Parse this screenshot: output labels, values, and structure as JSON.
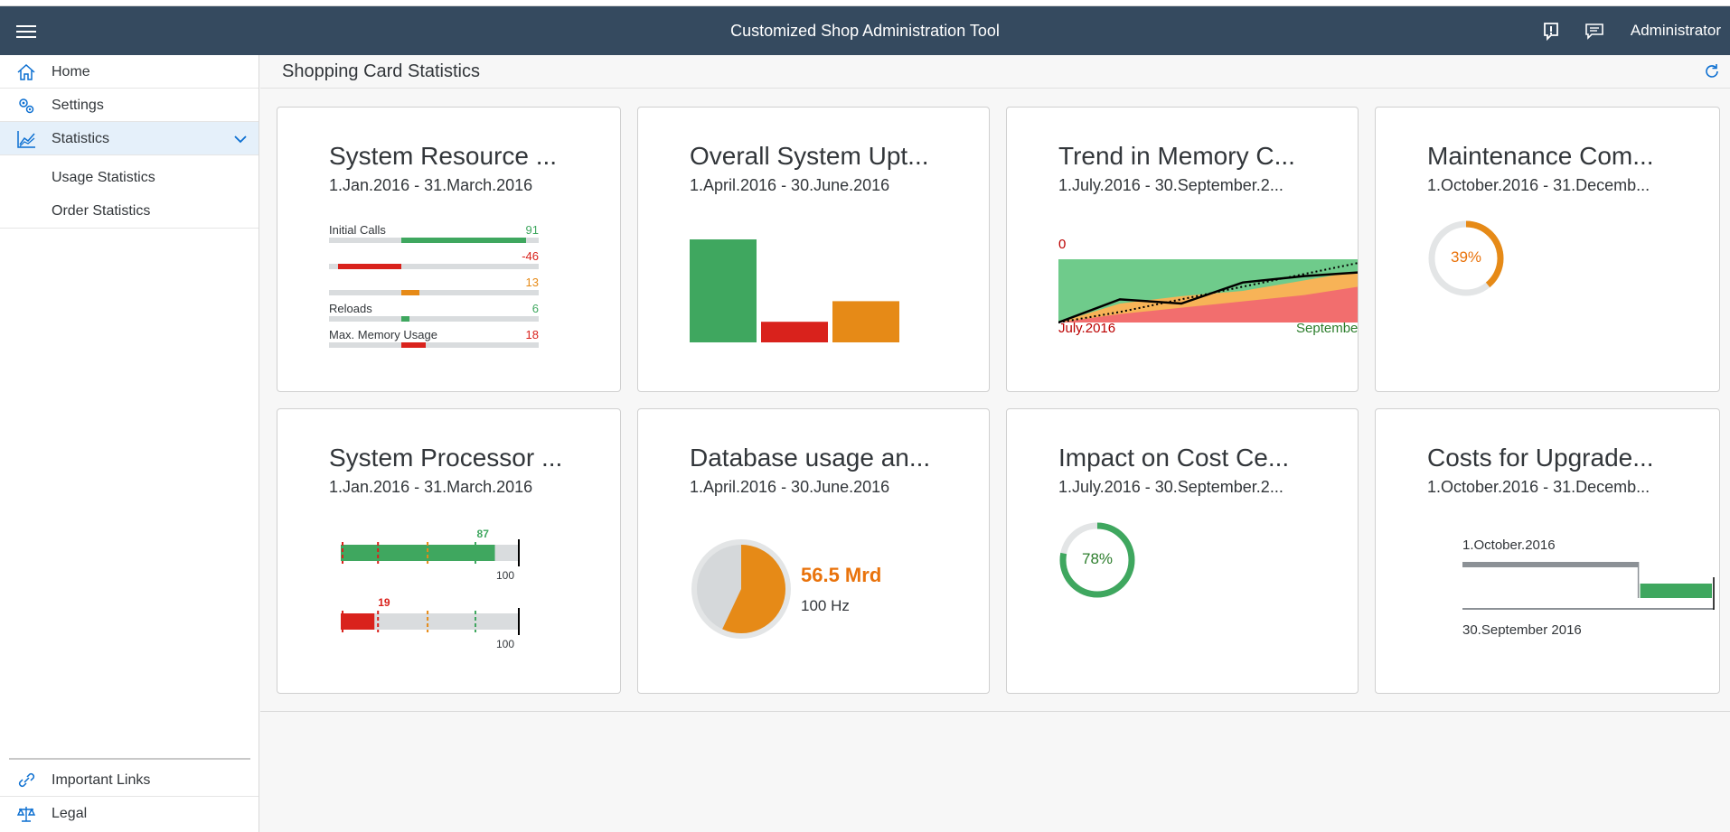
{
  "shell": {
    "title": "Customized Shop Administration Tool",
    "user": "Administrator",
    "icons": [
      "menu-icon",
      "feedback-icon",
      "notifications-icon"
    ]
  },
  "sidebar": {
    "items": [
      {
        "label": "Home",
        "icon": "home-icon"
      },
      {
        "label": "Settings",
        "icon": "settings-icon"
      },
      {
        "label": "Statistics",
        "icon": "chart-icon"
      },
      {
        "label": "Usage Statistics"
      },
      {
        "label": "Order Statistics"
      }
    ],
    "fixed": [
      {
        "label": "Important Links",
        "icon": "link-icon"
      },
      {
        "label": "Legal",
        "icon": "scales-icon"
      }
    ]
  },
  "page": {
    "title": "Shopping Card Statistics"
  },
  "colors": {
    "good": "#3fa75f",
    "error": "#d9221c",
    "critical": "#e68a17",
    "shell": "#354a5f"
  },
  "tiles": [
    {
      "title": "System Resource ...",
      "subtitle": "1.Jan.2016 - 31.March.2016",
      "chart_data": {
        "type": "comparison-bar",
        "items": [
          {
            "label": "Initial Calls",
            "value": "91",
            "number": 91,
            "color": "good"
          },
          {
            "label": "",
            "value": "-46",
            "number": -46,
            "color": "error"
          },
          {
            "label": "",
            "value": "13",
            "number": 13,
            "color": "critical"
          },
          {
            "label": "Reloads",
            "value": "6",
            "number": 6,
            "color": "good"
          },
          {
            "label": "Max. Memory Usage",
            "value": "18",
            "number": 18,
            "color": "error"
          }
        ],
        "xlim": [
          -100,
          100
        ]
      }
    },
    {
      "title": "Overall System Upt...",
      "subtitle": "1.April.2016 - 30.June.2016",
      "chart_data": {
        "type": "bar",
        "values": [
          100,
          20,
          40
        ],
        "colors": [
          "good",
          "error",
          "critical"
        ]
      }
    },
    {
      "title": "Trend in Memory C...",
      "subtitle": "1.July.2016 - 30.September.2...",
      "chart_data": {
        "type": "area",
        "left_top_label": "0",
        "left_bottom_label": "July.2016",
        "right_bottom_label": "Septembe",
        "x": [
          0,
          20,
          40,
          60,
          80,
          100
        ],
        "series": [
          {
            "name": "actual",
            "values": [
              0,
              22,
              18,
              38,
              44,
              48
            ]
          },
          {
            "name": "target",
            "values": [
              0,
              10,
              22,
              34,
              46,
              58
            ]
          },
          {
            "name": "upper",
            "values": [
              60,
              60,
              60,
              60,
              60,
              60
            ]
          },
          {
            "name": "critical_upper",
            "values": [
              0,
              18,
              25,
              30,
              40,
              50
            ]
          },
          {
            "name": "error_upper",
            "values": [
              0,
              8,
              14,
              20,
              26,
              35
            ]
          }
        ],
        "ylim": [
          0,
          60
        ]
      }
    },
    {
      "title": "Maintenance Com...",
      "subtitle": "1.October.2016 - 31.Decemb...",
      "chart_data": {
        "type": "radial",
        "percentage": 39,
        "label": "39%",
        "color": "critical"
      }
    },
    {
      "title": "System Processor ...",
      "subtitle": "1.Jan.2016 - 31.March.2016",
      "chart_data": {
        "type": "bullet",
        "items": [
          {
            "value": 87,
            "value_label": "87",
            "target_label": "100",
            "max": 100,
            "color": "good"
          },
          {
            "value": 19,
            "value_label": "19",
            "target_label": "100",
            "max": 100,
            "color": "error"
          }
        ],
        "thresholds": [
          0,
          20,
          48,
          75
        ]
      }
    },
    {
      "title": "Database usage an...",
      "subtitle": "1.April.2016 - 30.June.2016",
      "chart_data": {
        "type": "pie",
        "fraction": 0.57,
        "value": "56.5 Mrd",
        "scale": "100 Hz"
      }
    },
    {
      "title": "Impact on Cost Ce...",
      "subtitle": "1.July.2016 - 30.September.2...",
      "chart_data": {
        "type": "radial",
        "percentage": 78,
        "label": "78%",
        "color": "good"
      }
    },
    {
      "title": "Costs for Upgrade...",
      "subtitle": "1.October.2016 - 31.Decemb...",
      "chart_data": {
        "type": "delta",
        "value1_label": "1.October.2016",
        "value2_label": "30.September 2016",
        "value1": 70,
        "value2": 100,
        "delta_color": "good"
      }
    }
  ]
}
